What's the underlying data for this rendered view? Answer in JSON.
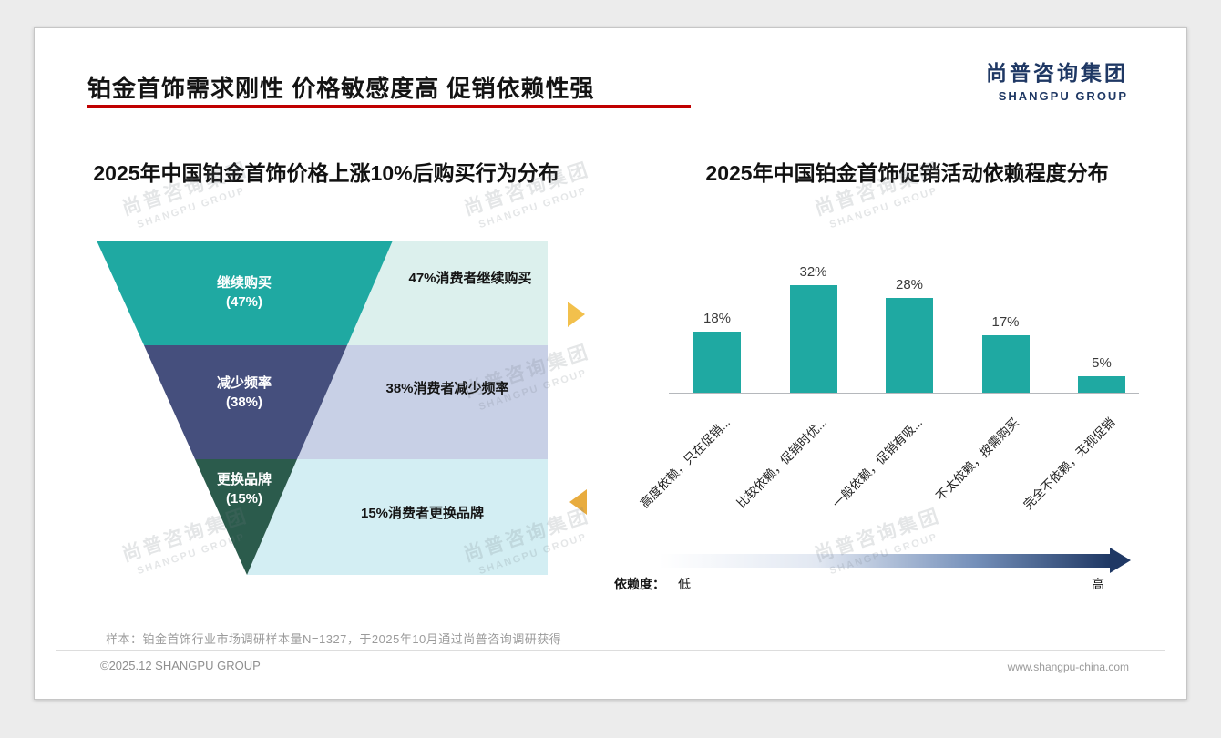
{
  "slide": {
    "title": "铂金首饰需求刚性 价格敏感度高 促销依赖性强",
    "logo": {
      "cn": "尚普咨询集团",
      "en": "SHANGPU GROUP"
    },
    "watermark": {
      "cn": "尚普咨询集团",
      "en": "SHANGPU GROUP"
    },
    "note": "样本：铂金首饰行业市场调研样本量N=1327，于2025年10月通过尚普咨询调研获得",
    "footer": {
      "left": "©2025.12 SHANGPU GROUP",
      "right": "www.shangpu-china.com"
    }
  },
  "colors": {
    "accent_red": "#C00000",
    "brand_navy": "#1F3864",
    "teal": "#1FA9A2",
    "funnel_navy": "#454F7D",
    "funnel_green": "#2B5B4C",
    "annotation_box_teal": "#DCF0ED",
    "annotation_box_periwinkle": "#C8D0E6",
    "annotation_box_cyan": "#D3EEF3",
    "arrow_yellow": "#F2C04C",
    "arrow_orange": "#E8AC3F"
  },
  "chart_data": [
    {
      "type": "funnel",
      "title": "2025年中国铂金首饰价格上涨10%后购买行为分布",
      "categories": [
        "继续购买",
        "减少频率",
        "更换品牌"
      ],
      "values": [
        47,
        38,
        15
      ],
      "segments": [
        {
          "label": "继续购买",
          "value_label": "(47%)",
          "annotation": "47%消费者继续购买"
        },
        {
          "label": "减少频率",
          "value_label": "(38%)",
          "annotation": "38%消费者减少频率"
        },
        {
          "label": "更换品牌",
          "value_label": "(15%)",
          "annotation": "15%消费者更换品牌"
        }
      ]
    },
    {
      "type": "bar",
      "title": "2025年中国铂金首饰促销活动依赖程度分布",
      "categories": [
        "高度依赖，只在促销...",
        "比较依赖，促销时优...",
        "一般依赖，促销有吸...",
        "不太依赖，按需购买",
        "完全不依赖，无视促销"
      ],
      "values": [
        18,
        32,
        28,
        17,
        5
      ],
      "value_labels": [
        "18%",
        "32%",
        "28%",
        "17%",
        "5%"
      ],
      "ylim": [
        0,
        40
      ],
      "grid": false,
      "legend": "none",
      "bar_color": "#1FA9A2",
      "dependency_axis": {
        "label": "依赖度：",
        "low": "低",
        "high": "高"
      }
    }
  ]
}
